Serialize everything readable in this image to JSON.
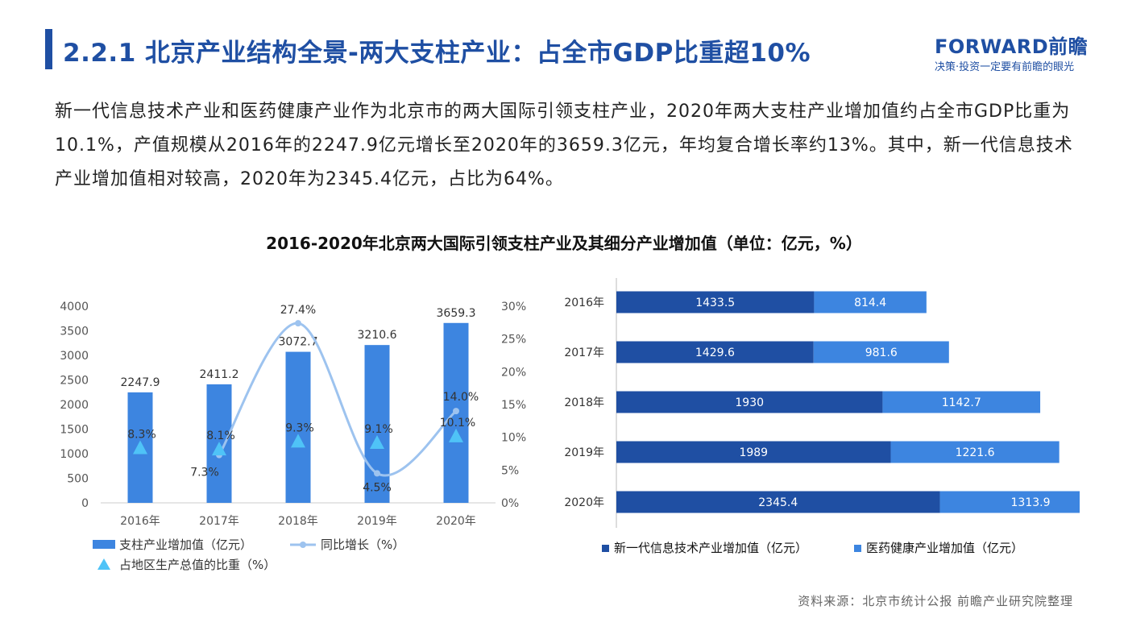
{
  "header": {
    "title": "2.2.1 北京产业结构全景-两大支柱产业：占全市GDP比重超10%",
    "logo_brand": "FORWARD前瞻",
    "logo_slogan": "决策·投资一定要有前瞻的眼光"
  },
  "paragraph": "新一代信息技术产业和医药健康产业作为北京市的两大国际引领支柱产业，2020年两大支柱产业增加值约占全市GDP比重为10.1%，产值规模从2016年的2247.9亿元增长至2020年的3659.3亿元，年均复合增长率约13%。其中，新一代信息技术产业增加值相对较高，2020年为2345.4亿元，占比为64%。",
  "chart_heading": "2016-2020年北京两大国际引领支柱产业及其细分产业增加值（单位：亿元，%）",
  "source": "资料来源：北京市统计公报 前瞻产业研究院整理",
  "colors": {
    "accent": "#1f4fa3",
    "bar": "#3d85e0",
    "line": "#9dc3ef",
    "triangle": "#4fc3f7",
    "dark_bar": "#1f4fa3",
    "light_bar": "#3d85e0"
  },
  "chart_data": [
    {
      "type": "bar",
      "categories": [
        "2016年",
        "2017年",
        "2018年",
        "2019年",
        "2020年"
      ],
      "series": [
        {
          "name": "支柱产业增加值（亿元）",
          "type": "bar",
          "axis": "left",
          "values": [
            2247.9,
            2411.2,
            3072.7,
            3210.6,
            3659.3
          ],
          "labels": [
            "2247.9",
            "2411.2",
            "3072.7",
            "3210.6",
            "3659.3"
          ]
        },
        {
          "name": "同比增长（%）",
          "type": "line",
          "axis": "right",
          "values": [
            null,
            7.3,
            27.4,
            4.5,
            14.0
          ],
          "labels": [
            "",
            "7.3%",
            "27.4%",
            "4.5%",
            "14.0%"
          ]
        },
        {
          "name": "占地区生产总值的比重（%）",
          "type": "scatter",
          "axis": "right",
          "values": [
            8.3,
            8.1,
            9.3,
            9.1,
            10.1
          ],
          "labels": [
            "8.3%",
            "8.1%",
            "9.3%",
            "9.1%",
            "10.1%"
          ]
        }
      ],
      "y_ticks": [
        "0",
        "500",
        "1000",
        "1500",
        "2000",
        "2500",
        "3000",
        "3500",
        "4000"
      ],
      "y2_ticks": [
        "0%",
        "5%",
        "10%",
        "15%",
        "20%",
        "25%",
        "30%"
      ],
      "ylim": [
        0,
        4000
      ],
      "y2lim": [
        0,
        30
      ],
      "grid": false,
      "legend": "bottom"
    },
    {
      "type": "bar",
      "orientation": "horizontal-stacked",
      "categories": [
        "2016年",
        "2017年",
        "2018年",
        "2019年",
        "2020年"
      ],
      "series": [
        {
          "name": "新一代信息技术产业增加值（亿元）",
          "values": [
            1433.5,
            1429.6,
            1930,
            1989,
            2345.4
          ],
          "labels": [
            "1433.5",
            "1429.6",
            "1930",
            "1989",
            "2345.4"
          ]
        },
        {
          "name": "医药健康产业增加值（亿元）",
          "values": [
            814.4,
            981.6,
            1142.7,
            1221.6,
            1313.9
          ],
          "labels": [
            "814.4",
            "981.6",
            "1142.7",
            "1221.6",
            "1313.9"
          ]
        }
      ],
      "xlim": [
        0,
        3700
      ],
      "grid": false,
      "legend": "bottom"
    }
  ]
}
